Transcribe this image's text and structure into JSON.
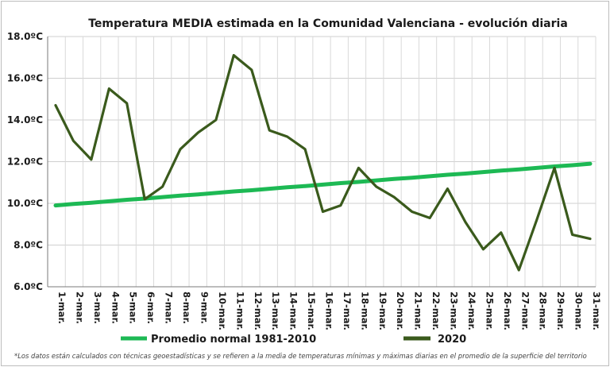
{
  "chart_data": {
    "type": "line",
    "title": "Temperatura MEDIA estimada en la Comunidad Valenciana - evolución diaria",
    "xlabel": "",
    "ylabel": "",
    "categories": [
      "1-mar.",
      "2-mar.",
      "3-mar.",
      "4-mar.",
      "5-mar.",
      "6-mar.",
      "7-mar.",
      "8-mar.",
      "9-mar.",
      "10-mar.",
      "11-mar.",
      "12-mar.",
      "13-mar.",
      "14-mar.",
      "15-mar.",
      "16-mar.",
      "17-mar.",
      "18-mar.",
      "19-mar.",
      "20-mar.",
      "21-mar.",
      "22-mar.",
      "23-mar.",
      "24-mar.",
      "25-mar.",
      "26-mar.",
      "27-mar.",
      "28-mar.",
      "29-mar.",
      "30-mar.",
      "31-mar."
    ],
    "ylim": [
      6.0,
      18.0
    ],
    "yticks": [
      6.0,
      8.0,
      10.0,
      12.0,
      14.0,
      16.0,
      18.0
    ],
    "ytick_labels": [
      "6.0ºC",
      "8.0ºC",
      "10.0ºC",
      "12.0ºC",
      "14.0ºC",
      "16.0ºC",
      "18.0ºC"
    ],
    "grid": true,
    "legend_position": "bottom",
    "series": [
      {
        "name": "Promedio normal 1981-2010",
        "color": "#1db954",
        "values": [
          9.9,
          9.97,
          10.03,
          10.1,
          10.17,
          10.23,
          10.3,
          10.37,
          10.43,
          10.5,
          10.57,
          10.63,
          10.7,
          10.77,
          10.83,
          10.9,
          10.97,
          11.03,
          11.1,
          11.17,
          11.23,
          11.3,
          11.37,
          11.43,
          11.5,
          11.57,
          11.63,
          11.7,
          11.77,
          11.83,
          11.9
        ]
      },
      {
        "name": "2020",
        "color": "#3a5a1c",
        "values": [
          14.7,
          13.0,
          12.1,
          15.5,
          14.8,
          10.2,
          10.8,
          12.6,
          13.4,
          14.0,
          17.1,
          16.4,
          13.5,
          13.2,
          12.6,
          9.6,
          9.9,
          11.7,
          10.8,
          10.3,
          9.6,
          9.3,
          10.7,
          9.1,
          7.8,
          8.6,
          6.8,
          9.2,
          11.7,
          8.5,
          8.3
        ]
      }
    ]
  },
  "footnote": "*Los datos están calculados con técnicas geoestadísticas y se refieren a la media de temperaturas mínimas y máximas diarias en el promedio de la superficie del territorio"
}
